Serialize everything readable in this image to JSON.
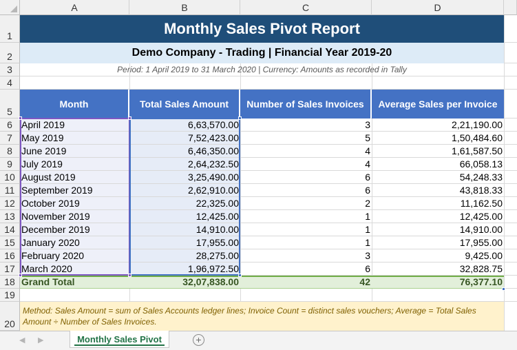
{
  "columns": [
    "A",
    "B",
    "C",
    "D"
  ],
  "row_numbers": [
    "1",
    "2",
    "3",
    "4",
    "5",
    "6",
    "7",
    "8",
    "9",
    "10",
    "11",
    "12",
    "13",
    "14",
    "15",
    "16",
    "17",
    "18",
    "19",
    "20"
  ],
  "report": {
    "title": "Monthly Sales Pivot Report",
    "subtitle": "Demo Company - Trading | Financial Year 2019-20",
    "period": "Period: 1 April 2019 to 31 March 2020 | Currency: Amounts as recorded in Tally"
  },
  "table": {
    "headers": [
      "Month",
      "Total Sales Amount",
      "Number of Sales Invoices",
      "Average Sales per Invoice"
    ],
    "rows": [
      {
        "month": "April 2019",
        "total": "6,63,570.00",
        "count": "3",
        "avg": "2,21,190.00"
      },
      {
        "month": "May 2019",
        "total": "7,52,423.00",
        "count": "5",
        "avg": "1,50,484.60"
      },
      {
        "month": "June 2019",
        "total": "6,46,350.00",
        "count": "4",
        "avg": "1,61,587.50"
      },
      {
        "month": "July 2019",
        "total": "2,64,232.50",
        "count": "4",
        "avg": "66,058.13"
      },
      {
        "month": "August 2019",
        "total": "3,25,490.00",
        "count": "6",
        "avg": "54,248.33"
      },
      {
        "month": "September 2019",
        "total": "2,62,910.00",
        "count": "6",
        "avg": "43,818.33"
      },
      {
        "month": "October 2019",
        "total": "22,325.00",
        "count": "2",
        "avg": "11,162.50"
      },
      {
        "month": "November 2019",
        "total": "12,425.00",
        "count": "1",
        "avg": "12,425.00"
      },
      {
        "month": "December 2019",
        "total": "14,910.00",
        "count": "1",
        "avg": "14,910.00"
      },
      {
        "month": "January 2020",
        "total": "17,955.00",
        "count": "1",
        "avg": "17,955.00"
      },
      {
        "month": "February 2020",
        "total": "28,275.00",
        "count": "3",
        "avg": "9,425.00"
      },
      {
        "month": "March 2020",
        "total": "1,96,972.50",
        "count": "6",
        "avg": "32,828.75"
      }
    ],
    "grand_total": {
      "label": "Grand Total",
      "total": "32,07,838.00",
      "count": "42",
      "avg": "76,377.10"
    }
  },
  "method_note": "Method: Sales Amount = sum of Sales Accounts ledger lines; Invoice Count = distinct sales vouchers; Average = Total Sales Amount ÷ Number of Sales Invoices.",
  "tabs": {
    "active": "Monthly Sales Pivot",
    "add_symbol": "+",
    "prev_symbol": "◀",
    "next_symbol": "▶"
  },
  "colors": {
    "title_bg": "#1f4e79",
    "header_bg": "#4472c4",
    "total_bg": "#e2efda",
    "note_bg": "#fff2cc",
    "tab_accent": "#217346"
  }
}
